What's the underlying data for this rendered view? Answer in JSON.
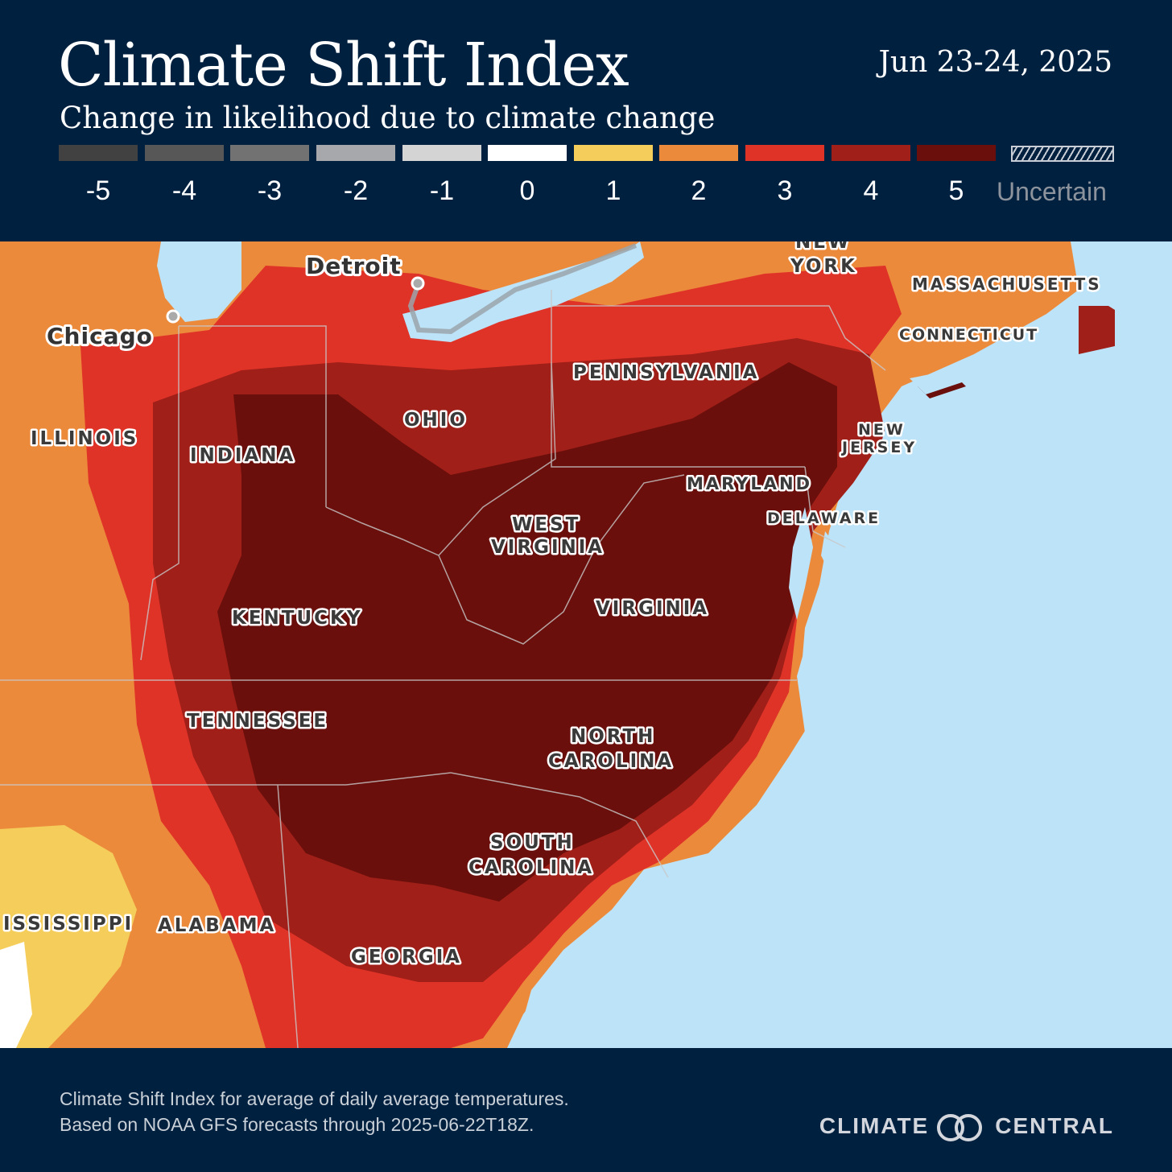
{
  "header": {
    "title": "Climate Shift Index",
    "subtitle": "Change in likelihood due to climate change",
    "date": "Jun 23-24, 2025"
  },
  "legend": {
    "items": [
      {
        "label": "-5",
        "color": "#414141"
      },
      {
        "label": "-4",
        "color": "#575757"
      },
      {
        "label": "-3",
        "color": "#727272"
      },
      {
        "label": "-2",
        "color": "#a6a8ab"
      },
      {
        "label": "-1",
        "color": "#d4d4d4"
      },
      {
        "label": "0",
        "color": "#ffffff"
      },
      {
        "label": "1",
        "color": "#f5cd5a"
      },
      {
        "label": "2",
        "color": "#ec8a3c"
      },
      {
        "label": "3",
        "color": "#e03328"
      },
      {
        "label": "4",
        "color": "#a01f18"
      },
      {
        "label": "5",
        "color": "#6b0f0c"
      }
    ],
    "uncertain_label": "Uncertain"
  },
  "map": {
    "water_color": "#bde3f8",
    "cities": [
      "Detroit",
      "Chicago"
    ],
    "states": {
      "new_york": [
        "NEW",
        "YORK"
      ],
      "massachusetts": "MASSACHUSETTS",
      "connecticut": "CONNECTICUT",
      "pennsylvania": "PENNSYLVANIA",
      "ohio": "OHIO",
      "illinois": "ILLINOIS",
      "indiana": "INDIANA",
      "new_jersey": [
        "NEW",
        "JERSEY"
      ],
      "maryland": "MARYLAND",
      "delaware": "DELAWARE",
      "west_virginia": [
        "WEST",
        "VIRGINIA"
      ],
      "virginia": "VIRGINIA",
      "kentucky": "KENTUCKY",
      "tennessee": "TENNESSEE",
      "north_carolina": [
        "NORTH",
        "CAROLINA"
      ],
      "south_carolina": [
        "SOUTH",
        "CAROLINA"
      ],
      "mississippi": "ISSISSIPPI",
      "alabama": "ALABAMA",
      "georgia": "GEORGIA"
    }
  },
  "footer": {
    "note_line1": "Climate Shift Index for average of daily average temperatures.",
    "note_line2": "Based on NOAA GFS forecasts through 2025-06-22T18Z.",
    "brand_left": "CLIMATE",
    "brand_right": "CENTRAL"
  }
}
